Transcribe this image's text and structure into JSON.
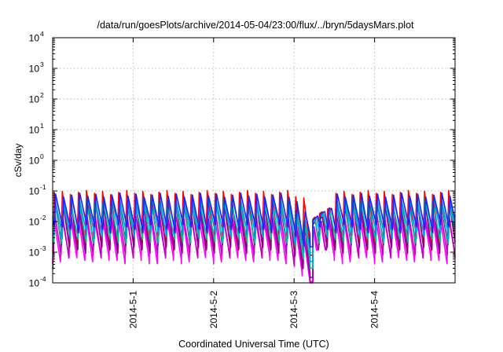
{
  "chart_data": {
    "type": "line",
    "title": "/data/run/goesPlots/archive/2014-05-04/23:00/flux/../bryn/5daysMars.plot",
    "xlabel": "Coordinated Universal Time (UTC)",
    "ylabel": "cSv/day",
    "yscale": "log",
    "ylim": [
      0.0001,
      10000
    ],
    "y_ticks": [
      {
        "value": 0.0001,
        "base": "10",
        "exp": "-4"
      },
      {
        "value": 0.001,
        "base": "10",
        "exp": "-3"
      },
      {
        "value": 0.01,
        "base": "10",
        "exp": "-2"
      },
      {
        "value": 0.1,
        "base": "10",
        "exp": "-1"
      },
      {
        "value": 1,
        "base": "10",
        "exp": "0"
      },
      {
        "value": 10,
        "base": "10",
        "exp": "1"
      },
      {
        "value": 100,
        "base": "10",
        "exp": "2"
      },
      {
        "value": 1000,
        "base": "10",
        "exp": "3"
      },
      {
        "value": 10000,
        "base": "10",
        "exp": "4"
      }
    ],
    "xlim": [
      "2014-04-30T00:00",
      "2014-05-05T00:00"
    ],
    "x_ticks": [
      {
        "value": "2014-05-01T00:00",
        "label": "2014-5-1"
      },
      {
        "value": "2014-05-02T00:00",
        "label": "2014-5-2"
      },
      {
        "value": "2014-05-03T00:00",
        "label": "2014-5-3"
      },
      {
        "value": "2014-05-04T00:00",
        "label": "2014-5-4"
      }
    ],
    "grid": true,
    "legend": "none",
    "pattern": {
      "cycle_days": 0.1,
      "cycle_start": "2014-04-30T00:00",
      "gap": {
        "drop_start": "2014-05-02T22:05",
        "minimum": "2014-05-03T04:48",
        "resume": "2014-05-03T05:35",
        "recovered": "2014-05-03T11:20"
      }
    },
    "series": [
      {
        "color": "#ff00ff",
        "peak": 0.018,
        "trough": 0.0006,
        "gap_min": 0.0001,
        "gap_resume": 0.005
      },
      {
        "color": "#c000c0",
        "peak": 0.025,
        "trough": 0.0009,
        "gap_min": 0.00011,
        "gap_resume": 0.006
      },
      {
        "color": "#ff0000",
        "peak": 0.09,
        "trough": 0.0016,
        "gap_min": 0.0008,
        "gap_resume": 0.012
      },
      {
        "color": "#8b008b",
        "peak": 0.05,
        "trough": 0.0012,
        "gap_min": 0.00015,
        "gap_resume": 0.008
      },
      {
        "color": "#00c0a0",
        "peak": 0.04,
        "trough": 0.0025,
        "gap_min": 0.0003,
        "gap_resume": 0.009
      },
      {
        "color": "#00a0e0",
        "peak": 0.06,
        "trough": 0.004,
        "gap_min": 0.0005,
        "gap_resume": 0.01
      },
      {
        "color": "#2020ff",
        "peak": 0.075,
        "trough": 0.006,
        "gap_min": 0.0015,
        "gap_resume": 0.011
      }
    ]
  }
}
